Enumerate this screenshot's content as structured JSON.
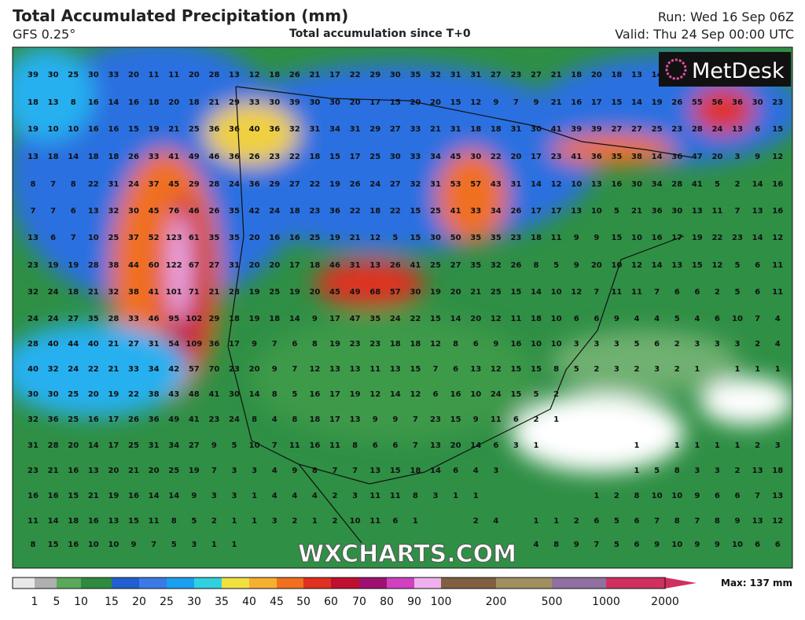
{
  "header": {
    "title": "Total Accumulated Precipitation (mm)",
    "model": "GFS 0.25°",
    "subtitle": "Total accumulation since T+0",
    "run": "Run: Wed 16 Sep 06Z",
    "valid": "Valid: Thu 24 Sep 00:00 UTC"
  },
  "logo": "MetDesk",
  "watermark": "WXCHARTS.COM",
  "grid": {
    "rows": [
      [
        39,
        30,
        25,
        30,
        33,
        20,
        11,
        11,
        20,
        28,
        13,
        12,
        18,
        26,
        21,
        17,
        22,
        29,
        30,
        35,
        32,
        31,
        31,
        27,
        23,
        27,
        21,
        18,
        20,
        18,
        13,
        14
      ],
      [
        18,
        13,
        8,
        16,
        14,
        16,
        18,
        20,
        18,
        21,
        29,
        33,
        30,
        39,
        30,
        30,
        20,
        17,
        15,
        20,
        20,
        15,
        12,
        9,
        7,
        9,
        21,
        16,
        17,
        15,
        14,
        19,
        26,
        55,
        56,
        36,
        30,
        23
      ],
      [
        19,
        10,
        10,
        16,
        16,
        15,
        19,
        21,
        25,
        36,
        36,
        40,
        36,
        32,
        31,
        34,
        31,
        29,
        27,
        33,
        21,
        31,
        18,
        18,
        31,
        30,
        41,
        39,
        39,
        27,
        27,
        25,
        23,
        28,
        24,
        13,
        6,
        15
      ],
      [
        13,
        18,
        14,
        18,
        18,
        26,
        33,
        41,
        49,
        46,
        36,
        26,
        23,
        22,
        18,
        15,
        17,
        25,
        30,
        33,
        34,
        45,
        30,
        22,
        20,
        17,
        23,
        41,
        36,
        35,
        38,
        14,
        36,
        47,
        20,
        3,
        9,
        12
      ],
      [
        8,
        7,
        8,
        22,
        31,
        24,
        37,
        45,
        29,
        28,
        24,
        36,
        29,
        27,
        22,
        19,
        26,
        24,
        27,
        32,
        31,
        53,
        57,
        43,
        31,
        14,
        12,
        10,
        13,
        16,
        30,
        34,
        28,
        41,
        5,
        2,
        14,
        16
      ],
      [
        7,
        7,
        6,
        13,
        32,
        30,
        45,
        76,
        46,
        26,
        35,
        42,
        24,
        18,
        23,
        36,
        22,
        18,
        22,
        15,
        25,
        41,
        33,
        34,
        26,
        17,
        17,
        13,
        10,
        5,
        21,
        36,
        30,
        13,
        11,
        7,
        13,
        16
      ],
      [
        13,
        6,
        7,
        10,
        25,
        37,
        52,
        123,
        61,
        35,
        35,
        20,
        16,
        16,
        25,
        19,
        21,
        12,
        5,
        15,
        30,
        50,
        35,
        35,
        23,
        18,
        11,
        9,
        9,
        15,
        10,
        16,
        17,
        19,
        22,
        23,
        14,
        12
      ],
      [
        23,
        19,
        19,
        28,
        38,
        44,
        60,
        122,
        67,
        27,
        31,
        20,
        20,
        17,
        18,
        46,
        31,
        13,
        26,
        41,
        25,
        27,
        35,
        32,
        26,
        8,
        5,
        9,
        20,
        10,
        12,
        14,
        13,
        15,
        12,
        5,
        6,
        11
      ],
      [
        32,
        24,
        18,
        21,
        32,
        38,
        41,
        101,
        71,
        21,
        28,
        19,
        25,
        19,
        20,
        45,
        49,
        68,
        57,
        30,
        19,
        20,
        21,
        25,
        15,
        14,
        10,
        12,
        7,
        11,
        11,
        7,
        6,
        6,
        2,
        5,
        6,
        11
      ],
      [
        24,
        24,
        27,
        35,
        28,
        33,
        46,
        95,
        102,
        29,
        18,
        19,
        18,
        14,
        9,
        17,
        47,
        35,
        24,
        22,
        15,
        14,
        20,
        12,
        11,
        18,
        10,
        6,
        6,
        9,
        4,
        4,
        5,
        4,
        6,
        10,
        7,
        4
      ],
      [
        28,
        40,
        44,
        40,
        21,
        27,
        31,
        54,
        109,
        36,
        17,
        9,
        7,
        6,
        8,
        19,
        23,
        23,
        18,
        18,
        12,
        8,
        6,
        9,
        16,
        10,
        10,
        3,
        3,
        3,
        5,
        6,
        2,
        3,
        3,
        3,
        2,
        4
      ],
      [
        40,
        32,
        24,
        22,
        21,
        33,
        34,
        42,
        57,
        70,
        23,
        20,
        9,
        7,
        12,
        13,
        13,
        11,
        13,
        15,
        7,
        6,
        13,
        12,
        15,
        15,
        8,
        5,
        2,
        3,
        2,
        3,
        2,
        1,
        null,
        1,
        1,
        1
      ],
      [
        30,
        30,
        25,
        20,
        19,
        22,
        38,
        43,
        48,
        41,
        30,
        14,
        8,
        5,
        16,
        17,
        19,
        12,
        14,
        12,
        6,
        16,
        10,
        24,
        15,
        5,
        2
      ],
      [
        32,
        36,
        25,
        16,
        17,
        26,
        36,
        49,
        41,
        23,
        24,
        8,
        4,
        8,
        18,
        17,
        13,
        9,
        9,
        7,
        23,
        15,
        9,
        11,
        6,
        2,
        1
      ],
      [
        31,
        28,
        20,
        14,
        17,
        25,
        31,
        34,
        27,
        9,
        5,
        10,
        7,
        11,
        16,
        11,
        8,
        6,
        6,
        7,
        13,
        20,
        14,
        6,
        3,
        1,
        null,
        null,
        null,
        null,
        1,
        null,
        1,
        1,
        1,
        1,
        2,
        3
      ],
      [
        23,
        21,
        16,
        13,
        20,
        21,
        20,
        25,
        19,
        7,
        3,
        3,
        4,
        9,
        8,
        7,
        7,
        13,
        15,
        18,
        14,
        6,
        4,
        3,
        null,
        null,
        null,
        null,
        null,
        null,
        1,
        5,
        8,
        3,
        3,
        2,
        13,
        18
      ],
      [
        16,
        16,
        15,
        21,
        19,
        16,
        14,
        14,
        9,
        3,
        3,
        1,
        4,
        4,
        4,
        2,
        3,
        11,
        11,
        8,
        3,
        1,
        1,
        null,
        null,
        null,
        null,
        null,
        1,
        2,
        8,
        10,
        10,
        9,
        6,
        6,
        7,
        13
      ],
      [
        11,
        14,
        18,
        16,
        13,
        15,
        11,
        8,
        5,
        2,
        1,
        1,
        3,
        2,
        1,
        2,
        10,
        11,
        6,
        1,
        null,
        null,
        2,
        4,
        null,
        1,
        1,
        2,
        6,
        5,
        6,
        7,
        8,
        7,
        8,
        9,
        13,
        12
      ],
      [
        8,
        15,
        16,
        10,
        10,
        9,
        7,
        5,
        3,
        1,
        1,
        null,
        null,
        null,
        null,
        null,
        null,
        null,
        null,
        null,
        null,
        null,
        null,
        null,
        null,
        4,
        8,
        9,
        7,
        5,
        6,
        9,
        10,
        9,
        9,
        10,
        6,
        6
      ]
    ]
  },
  "colorbar": {
    "ticks": [
      1,
      5,
      10,
      15,
      20,
      25,
      30,
      35,
      40,
      45,
      50,
      60,
      70,
      80,
      90,
      100,
      200,
      500,
      1000,
      2000
    ],
    "colors": [
      "#e8e8e8",
      "#b0b0b0",
      "#5aa85a",
      "#2e8a3e",
      "#1f5fd0",
      "#3a7ae8",
      "#1aa0f0",
      "#30d0e0",
      "#f0e040",
      "#f5b030",
      "#f07020",
      "#e03020",
      "#c01030",
      "#a01070",
      "#d040c0",
      "#f0b0f0",
      "#806040",
      "#a09060",
      "#9070a0",
      "#d03060"
    ],
    "max_label": "Max: 137 mm"
  }
}
